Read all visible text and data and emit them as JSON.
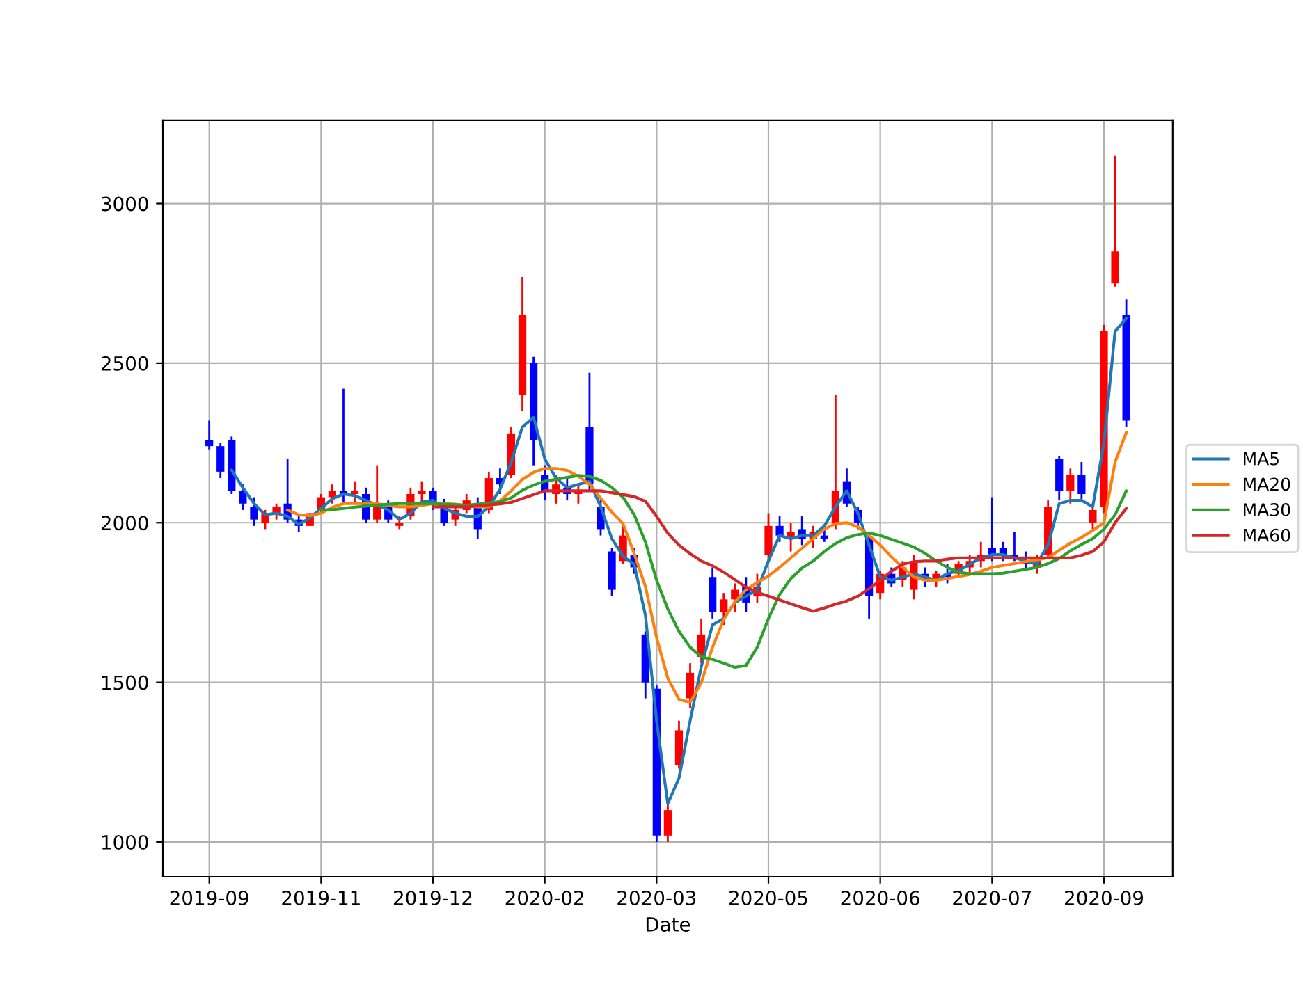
{
  "chart_data": {
    "type": "candlestick",
    "xlabel": "Date",
    "categories": [
      "2019-09",
      null,
      null,
      null,
      null,
      null,
      null,
      null,
      null,
      null,
      "2019-11",
      null,
      null,
      null,
      null,
      null,
      null,
      null,
      null,
      null,
      "2019-12",
      null,
      null,
      null,
      null,
      null,
      null,
      null,
      null,
      null,
      "2020-02",
      null,
      null,
      null,
      null,
      null,
      null,
      null,
      null,
      null,
      "2020-03",
      null,
      null,
      null,
      null,
      null,
      null,
      null,
      null,
      null,
      "2020-05",
      null,
      null,
      null,
      null,
      null,
      null,
      null,
      null,
      null,
      "2020-06",
      null,
      null,
      null,
      null,
      null,
      null,
      null,
      null,
      null,
      "2020-07",
      null,
      null,
      null,
      null,
      null,
      null,
      null,
      null,
      null,
      "2020-09",
      null,
      null
    ],
    "ohlc": [
      [
        2260,
        2320,
        2230,
        2240
      ],
      [
        2240,
        2250,
        2140,
        2160
      ],
      [
        2260,
        2270,
        2090,
        2100
      ],
      [
        2100,
        2120,
        2040,
        2060
      ],
      [
        2050,
        2080,
        1990,
        2010
      ],
      [
        2000,
        2040,
        1980,
        2030
      ],
      [
        2030,
        2060,
        2010,
        2050
      ],
      [
        2060,
        2200,
        2000,
        2010
      ],
      [
        2010,
        2020,
        1970,
        1990
      ],
      [
        1990,
        2030,
        1990,
        2030
      ],
      [
        2040,
        2090,
        2030,
        2080
      ],
      [
        2080,
        2120,
        2060,
        2100
      ],
      [
        2100,
        2420,
        2060,
        2090
      ],
      [
        2090,
        2130,
        2060,
        2100
      ],
      [
        2090,
        2110,
        2000,
        2010
      ],
      [
        2010,
        2180,
        2000,
        2060
      ],
      [
        2060,
        2070,
        2000,
        2010
      ],
      [
        1990,
        2020,
        1980,
        2000
      ],
      [
        2020,
        2110,
        2010,
        2090
      ],
      [
        2090,
        2130,
        2060,
        2100
      ],
      [
        2100,
        2110,
        2040,
        2060
      ],
      [
        2050,
        2075,
        1990,
        2000
      ],
      [
        2010,
        2060,
        1990,
        2040
      ],
      [
        2040,
        2090,
        2030,
        2070
      ],
      [
        2060,
        2080,
        1950,
        1980
      ],
      [
        2040,
        2160,
        2030,
        2140
      ],
      [
        2140,
        2170,
        2090,
        2120
      ],
      [
        2150,
        2300,
        2140,
        2280
      ],
      [
        2400,
        2770,
        2350,
        2650
      ],
      [
        2500,
        2520,
        2180,
        2260
      ],
      [
        2150,
        2180,
        2070,
        2100
      ],
      [
        2090,
        2150,
        2060,
        2120
      ],
      [
        2110,
        2140,
        2070,
        2090
      ],
      [
        2090,
        2120,
        2060,
        2100
      ],
      [
        2300,
        2470,
        2100,
        2120
      ],
      [
        2050,
        2070,
        1960,
        1980
      ],
      [
        1910,
        1920,
        1770,
        1790
      ],
      [
        1880,
        2000,
        1870,
        1960
      ],
      [
        1900,
        1920,
        1840,
        1860
      ],
      [
        1650,
        1660,
        1450,
        1500
      ],
      [
        1480,
        1490,
        1000,
        1020
      ],
      [
        1020,
        1120,
        1000,
        1100
      ],
      [
        1240,
        1380,
        1230,
        1350
      ],
      [
        1450,
        1560,
        1420,
        1530
      ],
      [
        1580,
        1700,
        1560,
        1650
      ],
      [
        1830,
        1860,
        1700,
        1720
      ],
      [
        1720,
        1780,
        1680,
        1760
      ],
      [
        1760,
        1810,
        1720,
        1790
      ],
      [
        1800,
        1830,
        1720,
        1750
      ],
      [
        1770,
        1840,
        1750,
        1800
      ],
      [
        1900,
        2030,
        1880,
        1990
      ],
      [
        1990,
        2020,
        1940,
        1960
      ],
      [
        1950,
        2000,
        1910,
        1970
      ],
      [
        1980,
        2020,
        1930,
        1950
      ],
      [
        1950,
        1990,
        1920,
        1970
      ],
      [
        1960,
        1980,
        1940,
        1950
      ],
      [
        2000,
        2400,
        1980,
        2100
      ],
      [
        2130,
        2170,
        2050,
        2060
      ],
      [
        2040,
        2050,
        1980,
        2000
      ],
      [
        1950,
        1970,
        1700,
        1770
      ],
      [
        1780,
        1850,
        1760,
        1840
      ],
      [
        1840,
        1860,
        1800,
        1810
      ],
      [
        1820,
        1880,
        1800,
        1860
      ],
      [
        1790,
        1900,
        1760,
        1880
      ],
      [
        1840,
        1860,
        1800,
        1820
      ],
      [
        1820,
        1850,
        1800,
        1840
      ],
      [
        1840,
        1870,
        1810,
        1830
      ],
      [
        1840,
        1880,
        1830,
        1870
      ],
      [
        1860,
        1900,
        1840,
        1880
      ],
      [
        1880,
        1940,
        1860,
        1900
      ],
      [
        1920,
        2080,
        1880,
        1900
      ],
      [
        1920,
        1940,
        1880,
        1900
      ],
      [
        1900,
        1970,
        1880,
        1890
      ],
      [
        1880,
        1910,
        1850,
        1870
      ],
      [
        1860,
        1900,
        1840,
        1880
      ],
      [
        1900,
        2070,
        1890,
        2050
      ],
      [
        2200,
        2210,
        2070,
        2100
      ],
      [
        2100,
        2170,
        2060,
        2150
      ],
      [
        2150,
        2190,
        2070,
        2090
      ],
      [
        2000,
        2060,
        1980,
        2040
      ],
      [
        2050,
        2620,
        2030,
        2600
      ],
      [
        2750,
        3150,
        2740,
        2850
      ],
      [
        2650,
        2700,
        2300,
        2320
      ]
    ],
    "colors": [
      "#0000ff",
      "#0000ff",
      "#0000ff",
      "#0000ff",
      "#0000ff",
      "#ff0000",
      "#ff0000",
      "#0000ff",
      "#0000ff",
      "#ff0000",
      "#ff0000",
      "#ff0000",
      "#0000ff",
      "#ff0000",
      "#0000ff",
      "#ff0000",
      "#0000ff",
      "#ff0000",
      "#ff0000",
      "#ff0000",
      "#0000ff",
      "#0000ff",
      "#ff0000",
      "#ff0000",
      "#0000ff",
      "#ff0000",
      "#0000ff",
      "#ff0000",
      "#ff0000",
      "#0000ff",
      "#0000ff",
      "#ff0000",
      "#0000ff",
      "#ff0000",
      "#0000ff",
      "#0000ff",
      "#0000ff",
      "#ff0000",
      "#0000ff",
      "#0000ff",
      "#0000ff",
      "#ff0000",
      "#ff0000",
      "#ff0000",
      "#ff0000",
      "#0000ff",
      "#ff0000",
      "#ff0000",
      "#0000ff",
      "#ff0000",
      "#ff0000",
      "#0000ff",
      "#ff0000",
      "#0000ff",
      "#ff0000",
      "#0000ff",
      "#ff0000",
      "#0000ff",
      "#0000ff",
      "#0000ff",
      "#ff0000",
      "#0000ff",
      "#ff0000",
      "#ff0000",
      "#0000ff",
      "#ff0000",
      "#0000ff",
      "#ff0000",
      "#ff0000",
      "#ff0000",
      "#0000ff",
      "#0000ff",
      "#0000ff",
      "#0000ff",
      "#ff0000",
      "#ff0000",
      "#0000ff",
      "#ff0000",
      "#0000ff",
      "#ff0000",
      "#ff0000",
      "#ff0000",
      "#0000ff"
    ],
    "series": [
      {
        "name": "MA5",
        "type": "line",
        "color": "#1f77b4",
        "values": [
          null,
          null,
          2165,
          2110,
          2060,
          2025,
          2030,
          2020,
          1995,
          2015,
          2045,
          2075,
          2090,
          2085,
          2070,
          2055,
          2040,
          2010,
          2030,
          2065,
          2070,
          2045,
          2030,
          2020,
          2020,
          2050,
          2105,
          2190,
          2300,
          2330,
          2200,
          2140,
          2110,
          2120,
          2130,
          2050,
          1950,
          1895,
          1870,
          1710,
          1380,
          1120,
          1200,
          1380,
          1550,
          1680,
          1700,
          1750,
          1770,
          1790,
          1880,
          1960,
          1950,
          1960,
          1960,
          1990,
          2050,
          2100,
          2030,
          1930,
          1830,
          1820,
          1830,
          1840,
          1830,
          1820,
          1840,
          1850,
          1870,
          1890,
          1900,
          1900,
          1890,
          1880,
          1870,
          1930,
          2060,
          2070,
          2070,
          2050,
          2250,
          2600,
          2640
        ]
      },
      {
        "name": "MA20",
        "type": "line",
        "color": "#ff7f0e",
        "values": [
          null,
          null,
          null,
          null,
          null,
          null,
          null,
          2040,
          2025,
          2022,
          2030,
          2048,
          2060,
          2060,
          2060,
          2060,
          2054,
          2050,
          2050,
          2054,
          2060,
          2060,
          2058,
          2052,
          2050,
          2050,
          2068,
          2100,
          2136,
          2158,
          2170,
          2170,
          2164,
          2146,
          2120,
          2077,
          2033,
          1997,
          1903,
          1800,
          1640,
          1513,
          1447,
          1437,
          1500,
          1610,
          1697,
          1753,
          1790,
          1813,
          1833,
          1860,
          1890,
          1920,
          1950,
          1980,
          1997,
          2000,
          1987,
          1960,
          1930,
          1893,
          1860,
          1830,
          1820,
          1820,
          1825,
          1832,
          1838,
          1848,
          1860,
          1866,
          1872,
          1878,
          1884,
          1890,
          1914,
          1936,
          1954,
          1976,
          2000,
          2190,
          2283
        ]
      },
      {
        "name": "MA30",
        "type": "line",
        "color": "#2ca02c",
        "values": [
          null,
          null,
          null,
          null,
          null,
          null,
          null,
          null,
          null,
          null,
          2040,
          2041,
          2045,
          2049,
          2052,
          2055,
          2058,
          2060,
          2060,
          2060,
          2060,
          2058,
          2057,
          2055,
          2058,
          2062,
          2066,
          2078,
          2102,
          2118,
          2130,
          2136,
          2142,
          2148,
          2145,
          2133,
          2110,
          2080,
          2025,
          1940,
          1820,
          1730,
          1660,
          1610,
          1580,
          1572,
          1560,
          1547,
          1553,
          1610,
          1700,
          1775,
          1825,
          1858,
          1880,
          1910,
          1935,
          1953,
          1963,
          1968,
          1960,
          1948,
          1936,
          1924,
          1904,
          1880,
          1860,
          1845,
          1840,
          1840,
          1840,
          1842,
          1848,
          1854,
          1860,
          1872,
          1888,
          1912,
          1932,
          1950,
          1980,
          2025,
          2100
        ]
      },
      {
        "name": "MA60",
        "type": "line",
        "color": "#d62728",
        "values": [
          null,
          null,
          null,
          null,
          null,
          null,
          null,
          null,
          null,
          null,
          null,
          null,
          null,
          null,
          null,
          null,
          null,
          null,
          null,
          null,
          2050,
          2050,
          2050,
          2050,
          2053,
          2056,
          2059,
          2064,
          2076,
          2088,
          2100,
          2100,
          2100,
          2100,
          2100,
          2100,
          2094,
          2088,
          2082,
          2067,
          2020,
          1967,
          1930,
          1903,
          1880,
          1865,
          1845,
          1822,
          1798,
          1782,
          1770,
          1758,
          1746,
          1734,
          1723,
          1733,
          1745,
          1755,
          1770,
          1793,
          1820,
          1848,
          1870,
          1878,
          1880,
          1880,
          1886,
          1890,
          1890,
          1890,
          1890,
          1890,
          1890,
          1890,
          1890,
          1890,
          1890,
          1890,
          1898,
          1910,
          1940,
          2000,
          2045
        ]
      }
    ],
    "ylim": [
      891,
      3261
    ],
    "yticks": [
      1000,
      1500,
      2000,
      2500,
      3000
    ],
    "grid": true,
    "legend": "right"
  }
}
